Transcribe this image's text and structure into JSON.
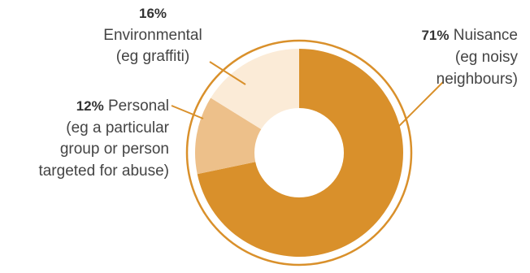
{
  "chart_data": {
    "type": "pie",
    "donut": true,
    "title": "",
    "slices": [
      {
        "name": "Nuisance",
        "value": 71,
        "pct_label": "71%",
        "label_line1": "Nuisance",
        "label_lines": [
          "(eg noisy",
          "neighbours)"
        ],
        "color": "#D9902B"
      },
      {
        "name": "Personal",
        "value": 12,
        "pct_label": "12%",
        "label_line1": "Personal",
        "label_lines": [
          "(eg a particular",
          "group or person",
          "targeted for abuse)"
        ],
        "color": "#EDC08A"
      },
      {
        "name": "Environmental",
        "value": 16,
        "pct_label": "16%",
        "label_line1": "",
        "label_lines": [
          "Environmental",
          "(eg graffiti)"
        ],
        "color": "#FBEBD7"
      }
    ],
    "outer_ring_color": "#D9902B"
  }
}
